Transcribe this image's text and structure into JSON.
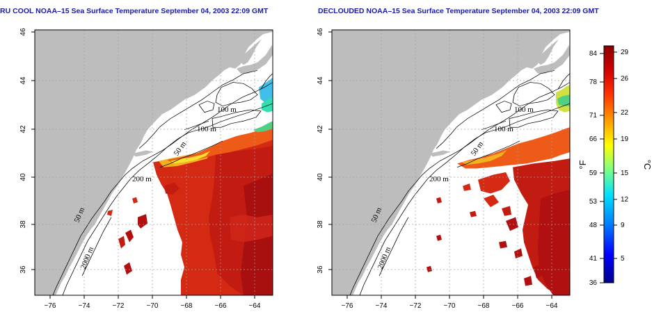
{
  "titles": {
    "left": "RU COOL NOAA–15 Sea Surface Temperature September 04, 2003 22:09 GMT",
    "right": "DECLOUDED NOAA–15 Sea Surface Temperature September 04, 2003 22:09 GMT"
  },
  "axes": {
    "lon_ticks": [
      "−76",
      "−74",
      "−72",
      "−70",
      "−68",
      "−66",
      "−64"
    ],
    "lat_ticks": [
      "36",
      "38",
      "40",
      "42",
      "44",
      "46"
    ]
  },
  "contour_labels": [
    "100 m",
    "100 m",
    "50 m",
    "200 m",
    "50 m",
    "2000 m"
  ],
  "colorbar": {
    "fahrenheit_ticks": [
      "84",
      "78",
      "71",
      "66",
      "59",
      "53",
      "48",
      "41",
      "36"
    ],
    "celsius_ticks": [
      "29",
      "26",
      "22",
      "19",
      "15",
      "12",
      "9",
      "5"
    ],
    "fahrenheit_unit": "°F",
    "celsius_unit": "°C",
    "colors": [
      "#00008b",
      "#0000ff",
      "#0080ff",
      "#00e0ff",
      "#80ff80",
      "#ffff00",
      "#ffa000",
      "#ff3000",
      "#d00000",
      "#8b0000"
    ]
  },
  "colors": {
    "land": "#bdbdbd",
    "ocean": "#ffffff",
    "sst_warm": "#d42a14",
    "sst_hot": "#b01010",
    "sst_mid": "#ee5a18",
    "sst_cool": "#f0c020",
    "sst_cold": "#40c0e8",
    "grid": "#a0a0a0",
    "title": "#1a1aa8"
  }
}
